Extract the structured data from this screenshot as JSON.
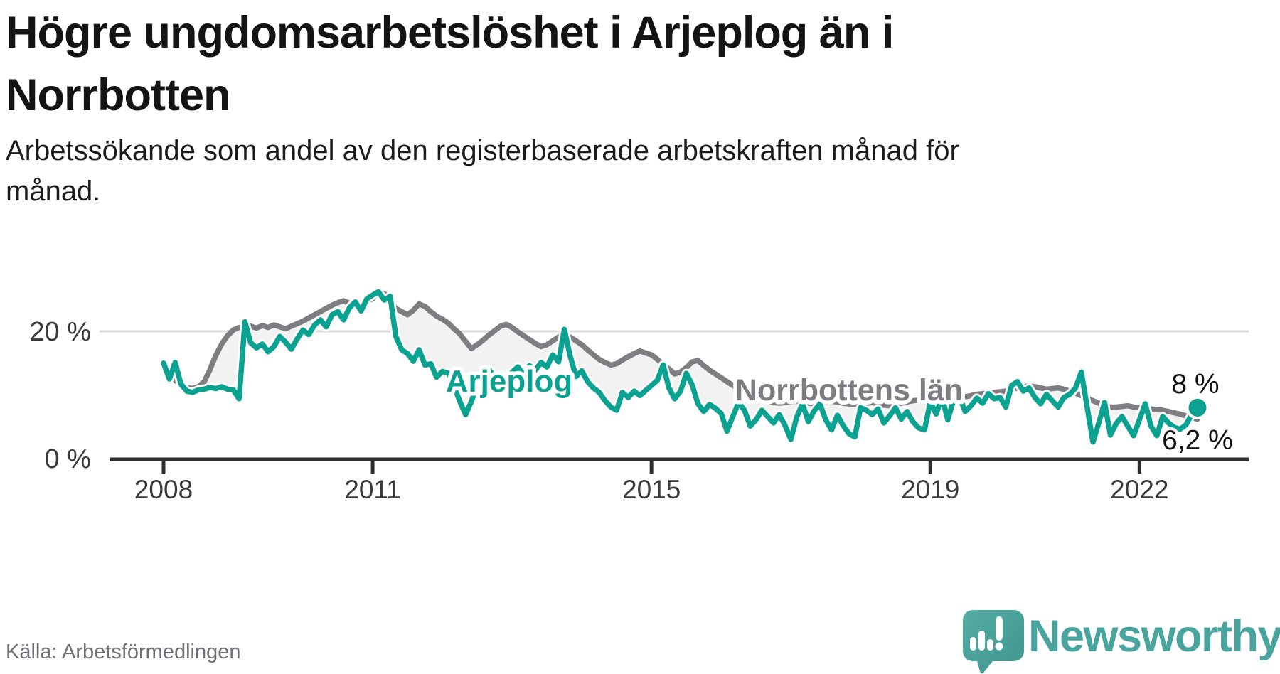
{
  "header": {
    "title_lines": [
      "Högre ungdomsarbetslöshet i Arjeplog än i",
      "Norrbotten"
    ],
    "subtitle_lines": [
      "Arbetssökande som andel av den registerbaserade arbetskraften månad för",
      "månad."
    ]
  },
  "footer": {
    "source": "Källa: Arbetsförmedlingen",
    "brand": "Newsworthy"
  },
  "colors": {
    "arjeplog": "#0CA291",
    "norrbotten": "#7E7E82",
    "band_fill": "#f2f2f2",
    "gridline": "#dbdbdb",
    "axis": "#2e2e2e",
    "tick_text": "#3a3a3a",
    "value_text": "#111111",
    "brand_teal": "#49a49d"
  },
  "chart_data": {
    "type": "line",
    "title": "Högre ungdomsarbetslöshet i Arjeplog än i Norrbotten",
    "subtitle": "Arbetssökande som andel av den registerbaserade arbetskraften månad för månad.",
    "unit": "%",
    "frequency": "monthly",
    "x_start": "2008-01",
    "x_end": "2022-11",
    "ylim": [
      0,
      33
    ],
    "grid": "single line at 20 %",
    "legend_position": "inline labels on lines",
    "x_ticks": [
      {
        "label": "2008",
        "month_index": 0
      },
      {
        "label": "2011",
        "month_index": 36
      },
      {
        "label": "2015",
        "month_index": 84
      },
      {
        "label": "2019",
        "month_index": 132
      },
      {
        "label": "2022",
        "month_index": 168
      }
    ],
    "y_ticks": [
      {
        "label": "0 %",
        "value": 0
      },
      {
        "label": "20 %",
        "value": 20
      }
    ],
    "series": [
      {
        "name": "Arjeplog",
        "color": "#0CA291",
        "end_label": "8 %",
        "last_value": 8.0,
        "values": [
          15.0,
          12.5,
          15.1,
          11.7,
          10.6,
          10.4,
          10.8,
          10.9,
          11.2,
          11.0,
          11.3,
          10.9,
          10.8,
          9.4,
          21.5,
          18.2,
          17.4,
          18.0,
          16.8,
          17.6,
          19.2,
          18.3,
          17.2,
          18.8,
          20.2,
          19.5,
          21.0,
          21.8,
          20.7,
          22.6,
          23.1,
          21.8,
          23.7,
          24.6,
          23.2,
          25.1,
          25.7,
          26.2,
          24.9,
          25.5,
          19.2,
          17.1,
          16.5,
          15.3,
          17.1,
          14.7,
          14.9,
          12.8,
          13.7,
          13.4,
          11.4,
          9.0,
          6.9,
          9.0,
          11.4,
          13.0,
          14.0,
          12.8,
          13.3,
          12.2,
          13.6,
          14.4,
          13.1,
          14.6,
          13.9,
          15.1,
          14.4,
          16.3,
          15.2,
          20.3,
          16.1,
          12.9,
          13.8,
          12.1,
          11.1,
          10.4,
          9.1,
          8.1,
          7.6,
          10.4,
          9.6,
          10.6,
          9.9,
          10.7,
          11.5,
          12.3,
          14.7,
          11.1,
          9.4,
          10.6,
          13.4,
          11.6,
          8.6,
          7.4,
          8.5,
          7.9,
          7.1,
          4.3,
          6.6,
          8.8,
          7.6,
          5.1,
          6.1,
          7.6,
          6.6,
          5.6,
          6.9,
          5.2,
          3.0,
          6.5,
          8.6,
          5.8,
          7.5,
          8.6,
          6.1,
          4.5,
          6.8,
          5.2,
          3.9,
          3.4,
          8.0,
          7.6,
          6.9,
          7.8,
          5.6,
          6.7,
          8.0,
          6.2,
          7.4,
          5.8,
          4.8,
          4.5,
          8.9,
          7.0,
          9.7,
          6.1,
          9.2,
          9.7,
          7.4,
          8.3,
          9.5,
          8.7,
          10.2,
          9.4,
          9.6,
          8.1,
          11.5,
          12.1,
          10.6,
          11.1,
          9.6,
          8.6,
          10.1,
          9.1,
          8.1,
          9.6,
          10.1,
          11.1,
          13.6,
          8.1,
          2.6,
          5.6,
          8.8,
          3.7,
          5.5,
          6.6,
          5.1,
          3.6,
          6.1,
          8.6,
          5.1,
          3.6,
          6.6,
          5.6,
          4.9,
          4.6,
          5.3,
          6.9,
          8.0
        ]
      },
      {
        "name": "Norrbottens län",
        "color": "#7E7E82",
        "end_label": "6,2 %",
        "last_value": 6.2,
        "values": [
          14.5,
          13.3,
          12.3,
          11.6,
          11.2,
          11.0,
          11.3,
          12.1,
          14.0,
          16.2,
          18.0,
          19.3,
          20.2,
          20.6,
          20.3,
          20.8,
          20.5,
          20.9,
          20.6,
          21.0,
          20.7,
          20.4,
          20.8,
          21.2,
          21.6,
          22.1,
          22.6,
          23.1,
          23.6,
          24.1,
          24.5,
          24.8,
          24.4,
          24.0,
          24.4,
          24.8,
          25.1,
          26.3,
          25.9,
          24.6,
          23.6,
          23.1,
          22.6,
          23.3,
          24.3,
          23.9,
          23.1,
          22.4,
          21.9,
          21.3,
          20.4,
          19.6,
          18.4,
          17.3,
          17.9,
          18.6,
          19.4,
          20.1,
          20.8,
          21.1,
          20.6,
          19.9,
          19.3,
          18.7,
          18.1,
          17.6,
          17.9,
          18.5,
          19.1,
          19.6,
          19.1,
          18.5,
          17.9,
          17.1,
          16.3,
          15.6,
          15.1,
          14.7,
          14.9,
          15.5,
          16.0,
          16.5,
          16.9,
          16.6,
          16.3,
          15.6,
          14.8,
          14.1,
          13.3,
          13.6,
          14.3,
          15.2,
          15.4,
          14.6,
          13.9,
          13.3,
          12.7,
          12.1,
          11.5,
          10.9,
          10.4,
          9.9,
          9.5,
          9.2,
          9.0,
          8.8,
          8.7,
          8.8,
          8.9,
          9.0,
          8.8,
          8.7,
          8.6,
          8.7,
          8.8,
          9.0,
          8.9,
          8.7,
          8.6,
          8.5,
          8.6,
          8.7,
          8.8,
          8.6,
          8.4,
          8.3,
          8.5,
          8.7,
          8.9,
          9.1,
          9.2,
          9.1,
          8.2,
          8.5,
          8.8,
          9.0,
          9.3,
          9.5,
          9.7,
          9.9,
          10.1,
          10.2,
          10.3,
          10.4,
          10.5,
          10.6,
          10.9,
          11.1,
          11.3,
          11.4,
          11.3,
          11.1,
          10.9,
          11.0,
          11.1,
          10.9,
          10.6,
          10.3,
          9.9,
          9.5,
          9.1,
          8.7,
          8.3,
          8.1,
          8.1,
          8.2,
          8.3,
          8.1,
          8.0,
          7.9,
          7.8,
          7.7,
          7.6,
          7.4,
          7.2,
          7.0,
          6.7,
          6.4,
          6.2
        ]
      }
    ]
  }
}
